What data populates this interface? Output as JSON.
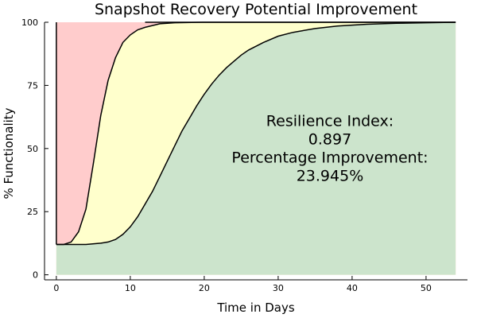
{
  "chart_data": {
    "type": "area",
    "title": "Snapshot Recovery Potential Improvement",
    "xlabel": "Time in Days",
    "ylabel": "% Functionality",
    "xlim": [
      -1.6,
      55.6
    ],
    "ylim": [
      -2,
      100
    ],
    "xticks": [
      0,
      10,
      20,
      30,
      40,
      50
    ],
    "yticks": [
      0,
      25,
      50,
      75,
      100
    ],
    "grid": false,
    "colors": {
      "loss_region": "#ffcccc",
      "improvement_region": "#ffffcc",
      "recovered_region": "#cce4cc",
      "curve": "#000000"
    },
    "series": [
      {
        "role": "improved-recovery-curve",
        "x": [
          0,
          1,
          2,
          3,
          4,
          5,
          6,
          7,
          8,
          9,
          10,
          11,
          12,
          14,
          16,
          20,
          30,
          40,
          54
        ],
        "y": [
          12,
          12,
          13,
          17,
          26,
          44,
          63,
          77,
          86,
          92,
          95,
          97,
          98,
          99.4,
          99.8,
          100,
          100,
          100,
          100
        ]
      },
      {
        "role": "baseline-recovery-curve",
        "x": [
          0,
          2,
          4,
          6,
          7,
          8,
          9,
          10,
          11,
          12,
          13,
          14,
          15,
          16,
          17,
          18,
          19,
          20,
          21,
          22,
          23,
          24,
          25,
          26,
          28,
          30,
          32,
          35,
          38,
          42,
          46,
          50,
          54
        ],
        "y": [
          12,
          12,
          12,
          12.5,
          13,
          14,
          16,
          19,
          23,
          28,
          33,
          39,
          45,
          51,
          57,
          62,
          67,
          71.5,
          75.5,
          79,
          82,
          84.5,
          87,
          89,
          92,
          94.5,
          96,
          97.5,
          98.5,
          99.2,
          99.6,
          99.8,
          100
        ]
      }
    ],
    "annotation": {
      "lines": [
        "Resilience Index:",
        "0.897",
        "Percentage Improvement:",
        "23.945%"
      ],
      "x": 37,
      "y": 50
    }
  }
}
